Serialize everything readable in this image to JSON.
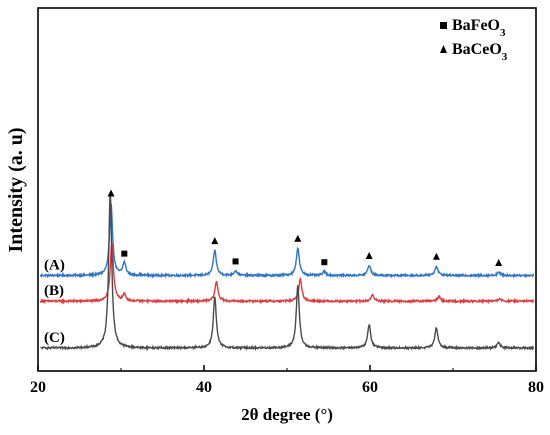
{
  "chart_data": {
    "type": "line",
    "title": "",
    "xlabel": "2θ degree (°)",
    "ylabel": "Intensity (a. u)",
    "xlim": [
      20,
      80
    ],
    "xticks": [
      20,
      40,
      60,
      80
    ],
    "x_tick_labels": [
      "20",
      "40",
      "60",
      "80"
    ],
    "grid": false,
    "legend_position": "top-right",
    "legend": [
      {
        "marker": "square",
        "label_base": "BaFeO",
        "label_sub": "3"
      },
      {
        "marker": "triangle",
        "label_base": "BaCeO",
        "label_sub": "3"
      }
    ],
    "series": [
      {
        "name": "(A)",
        "color": "#2e74c8",
        "baseline": 0.93,
        "noise": 0.012,
        "peaks": [
          {
            "x": 28.8,
            "h": 0.93
          },
          {
            "x": 30.4,
            "h": 0.16
          },
          {
            "x": 41.3,
            "h": 0.32
          },
          {
            "x": 43.8,
            "h": 0.06
          },
          {
            "x": 51.3,
            "h": 0.35
          },
          {
            "x": 54.5,
            "h": 0.05
          },
          {
            "x": 59.9,
            "h": 0.13
          },
          {
            "x": 68.0,
            "h": 0.12
          },
          {
            "x": 75.5,
            "h": 0.04
          }
        ],
        "markers": [
          {
            "x": 28.8,
            "type": "triangle"
          },
          {
            "x": 30.4,
            "type": "square"
          },
          {
            "x": 41.3,
            "type": "triangle"
          },
          {
            "x": 43.8,
            "type": "square"
          },
          {
            "x": 51.3,
            "type": "triangle"
          },
          {
            "x": 54.5,
            "type": "square"
          },
          {
            "x": 59.9,
            "type": "triangle"
          },
          {
            "x": 68.0,
            "type": "triangle"
          },
          {
            "x": 75.5,
            "type": "triangle"
          }
        ]
      },
      {
        "name": "(B)",
        "color": "#e03a3e",
        "baseline": 0.6,
        "noise": 0.012,
        "peaks": [
          {
            "x": 28.9,
            "h": 0.75
          },
          {
            "x": 30.4,
            "h": 0.08
          },
          {
            "x": 41.5,
            "h": 0.25
          },
          {
            "x": 51.6,
            "h": 0.28
          },
          {
            "x": 60.3,
            "h": 0.08
          },
          {
            "x": 68.3,
            "h": 0.06
          },
          {
            "x": 75.6,
            "h": 0.03
          }
        ],
        "markers": []
      },
      {
        "name": "(C)",
        "color": "#4a4a4a",
        "baseline": 0.0,
        "noise": 0.012,
        "peaks": [
          {
            "x": 28.7,
            "h": 2.0
          },
          {
            "x": 41.3,
            "h": 0.65
          },
          {
            "x": 51.3,
            "h": 0.8
          },
          {
            "x": 59.9,
            "h": 0.3
          },
          {
            "x": 68.0,
            "h": 0.26
          },
          {
            "x": 75.5,
            "h": 0.07
          }
        ],
        "markers": []
      }
    ]
  }
}
